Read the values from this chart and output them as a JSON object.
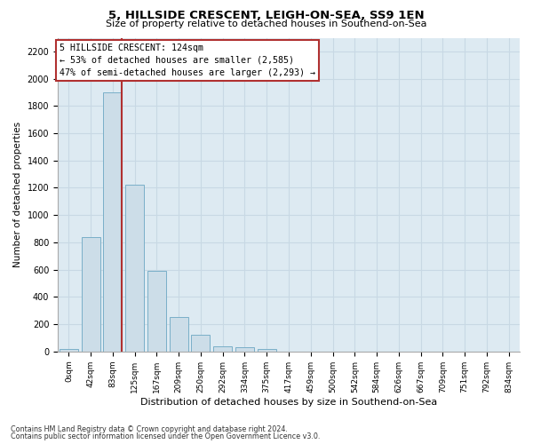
{
  "title": "5, HILLSIDE CRESCENT, LEIGH-ON-SEA, SS9 1EN",
  "subtitle": "Size of property relative to detached houses in Southend-on-Sea",
  "xlabel": "Distribution of detached houses by size in Southend-on-Sea",
  "ylabel": "Number of detached properties",
  "footer_line1": "Contains HM Land Registry data © Crown copyright and database right 2024.",
  "footer_line2": "Contains public sector information licensed under the Open Government Licence v3.0.",
  "annotation_line1": "5 HILLSIDE CRESCENT: 124sqm",
  "annotation_line2": "← 53% of detached houses are smaller (2,585)",
  "annotation_line3": "47% of semi-detached houses are larger (2,293) →",
  "bar_values": [
    20,
    840,
    1900,
    1220,
    590,
    255,
    125,
    40,
    30,
    20,
    0,
    0,
    0,
    0,
    0,
    0,
    0,
    0,
    0,
    0,
    0
  ],
  "bar_labels": [
    "0sqm",
    "42sqm",
    "83sqm",
    "125sqm",
    "167sqm",
    "209sqm",
    "250sqm",
    "292sqm",
    "334sqm",
    "375sqm",
    "417sqm",
    "459sqm",
    "500sqm",
    "542sqm",
    "584sqm",
    "626sqm",
    "667sqm",
    "709sqm",
    "751sqm",
    "792sqm",
    "834sqm"
  ],
  "ylim": [
    0,
    2300
  ],
  "yticks": [
    0,
    200,
    400,
    600,
    800,
    1000,
    1200,
    1400,
    1600,
    1800,
    2000,
    2200
  ],
  "bar_color": "#ccdde8",
  "bar_edge_color": "#7aafc8",
  "marker_color": "#b03030",
  "annotation_box_color": "#b03030",
  "grid_color": "#c8d8e4",
  "bg_color": "#ddeaf2"
}
